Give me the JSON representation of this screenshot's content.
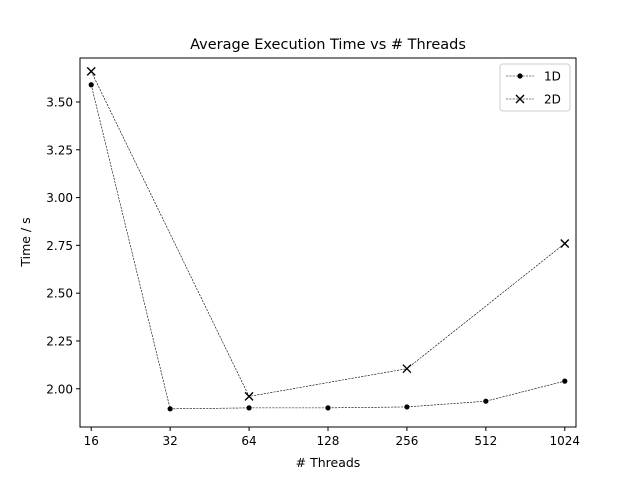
{
  "chart_data": {
    "type": "line",
    "title": "Average Execution Time vs # Threads",
    "xlabel": "# Threads",
    "ylabel": "Time / s",
    "x_scale": "log2",
    "x_ticks": [
      16,
      32,
      64,
      128,
      256,
      512,
      1024
    ],
    "x_tick_labels": [
      "16",
      "32",
      "64",
      "128",
      "256",
      "512",
      "1024"
    ],
    "y_ticks": [
      2.0,
      2.25,
      2.5,
      2.75,
      3.0,
      3.25,
      3.5
    ],
    "y_tick_labels": [
      "2.00",
      "2.25",
      "2.50",
      "2.75",
      "3.00",
      "3.25",
      "3.50"
    ],
    "xlim": [
      14.5,
      1130
    ],
    "ylim": [
      1.8,
      3.73
    ],
    "grid": false,
    "legend_position": "top-right",
    "series": [
      {
        "name": "1D",
        "marker": "dot",
        "color": "#000000",
        "line_style": "dashed",
        "x": [
          16,
          32,
          64,
          128,
          256,
          512,
          1024
        ],
        "y": [
          3.59,
          1.895,
          1.9,
          1.9,
          1.905,
          1.935,
          2.04
        ]
      },
      {
        "name": "2D",
        "marker": "x",
        "color": "#000000",
        "line_style": "dashed",
        "x": [
          16,
          64,
          256,
          1024
        ],
        "y": [
          3.66,
          1.96,
          2.105,
          2.76
        ]
      }
    ]
  }
}
